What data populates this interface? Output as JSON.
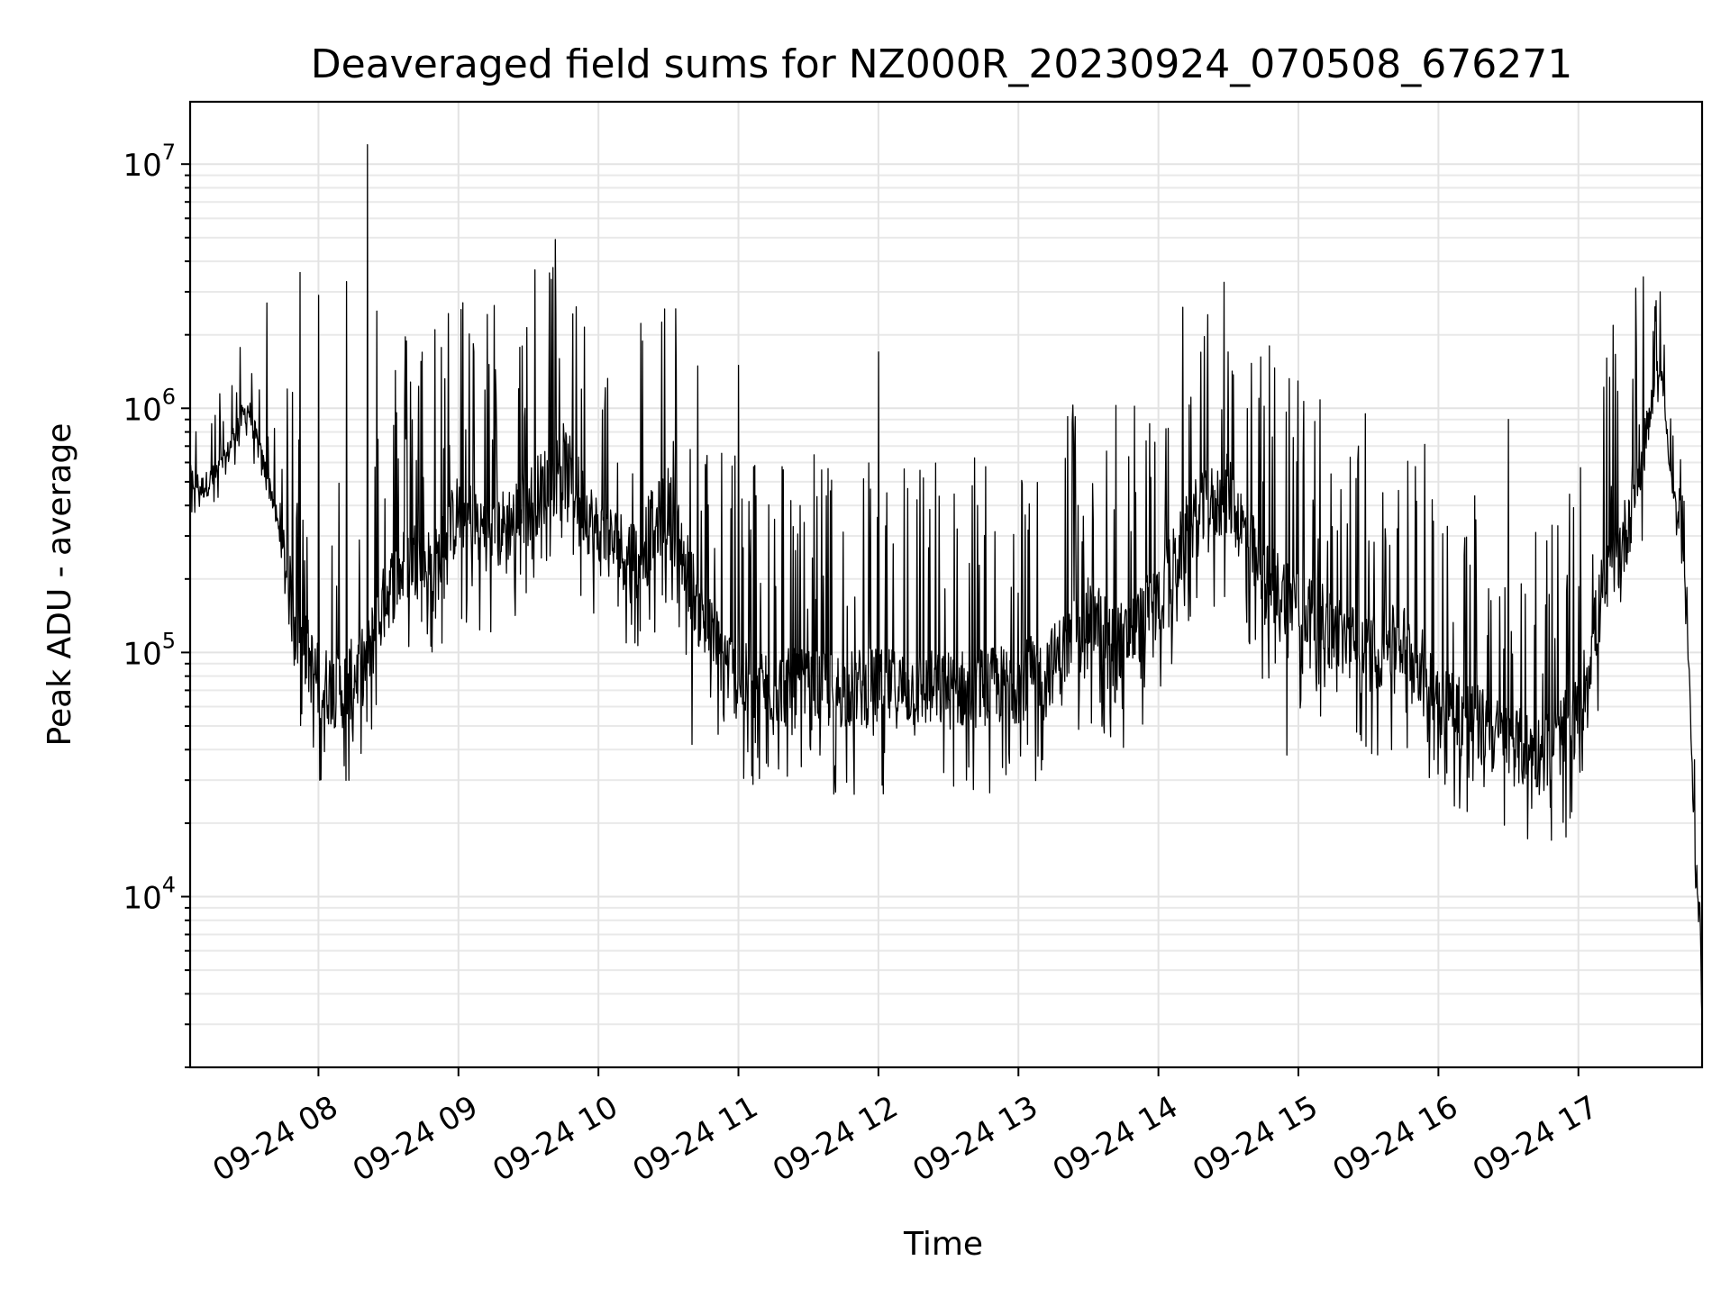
{
  "chart_data": {
    "type": "line",
    "title": "Deaveraged field sums for NZ000R_20230924_070508_676271",
    "xlabel": "Time",
    "ylabel": "Peak ADU - average",
    "yscale": "log",
    "xlim": [
      "2023-09-24 07:05",
      "2023-09-24 17:53"
    ],
    "ylim": [
      2000,
      18000000
    ],
    "grid": "on (major and minor)",
    "line_color": "#000000",
    "x_ticks": [
      {
        "label": "09-24 08",
        "value": "2023-09-24 08:00"
      },
      {
        "label": "09-24 09",
        "value": "2023-09-24 09:00"
      },
      {
        "label": "09-24 10",
        "value": "2023-09-24 10:00"
      },
      {
        "label": "09-24 11",
        "value": "2023-09-24 11:00"
      },
      {
        "label": "09-24 12",
        "value": "2023-09-24 12:00"
      },
      {
        "label": "09-24 13",
        "value": "2023-09-24 13:00"
      },
      {
        "label": "09-24 14",
        "value": "2023-09-24 14:00"
      },
      {
        "label": "09-24 15",
        "value": "2023-09-24 15:00"
      },
      {
        "label": "09-24 16",
        "value": "2023-09-24 16:00"
      },
      {
        "label": "09-24 17",
        "value": "2023-09-24 17:00"
      }
    ],
    "y_ticks": [
      {
        "base": "10",
        "exp": "4",
        "value": 10000
      },
      {
        "base": "10",
        "exp": "5",
        "value": 100000
      },
      {
        "base": "10",
        "exp": "6",
        "value": 1000000
      },
      {
        "base": "10",
        "exp": "7",
        "value": 10000000
      }
    ],
    "series": [
      {
        "baseline": {
          "x": [
            "07:05",
            "07:10",
            "07:15",
            "07:20",
            "07:25",
            "07:30",
            "07:35",
            "07:40",
            "07:45",
            "07:50",
            "08:00",
            "08:10",
            "08:20",
            "08:30",
            "08:40",
            "08:50",
            "09:00",
            "09:15",
            "09:30",
            "09:45",
            "10:00",
            "10:15",
            "10:30",
            "10:45",
            "11:00",
            "11:30",
            "12:00",
            "12:30",
            "13:00",
            "13:15",
            "13:30",
            "13:45",
            "14:00",
            "14:15",
            "14:30",
            "14:45",
            "15:00",
            "15:15",
            "15:30",
            "15:45",
            "16:00",
            "16:15",
            "16:30",
            "16:45",
            "17:00",
            "17:10",
            "17:20",
            "17:30",
            "17:35",
            "17:40",
            "17:45",
            "17:48",
            "17:50",
            "17:52",
            "17:53"
          ],
          "y": [
            520000,
            470000,
            520000,
            600000,
            850000,
            1000000,
            650000,
            450000,
            250000,
            130000,
            75000,
            70000,
            90000,
            180000,
            250000,
            220000,
            380000,
            300000,
            400000,
            600000,
            300000,
            250000,
            400000,
            130000,
            75000,
            70000,
            72000,
            70000,
            75000,
            90000,
            140000,
            110000,
            160000,
            350000,
            450000,
            200000,
            160000,
            120000,
            100000,
            110000,
            70000,
            52000,
            42000,
            38000,
            55000,
            170000,
            300000,
            900000,
            1600000,
            500000,
            250000,
            60000,
            15000,
            9000,
            3000
          ]
        },
        "spikes": [
          {
            "x": "07:52",
            "y": 3600000
          },
          {
            "x": "08:00",
            "y": 2900000
          },
          {
            "x": "08:12",
            "y": 3300000
          },
          {
            "x": "08:21",
            "y": 12000000
          },
          {
            "x": "08:25",
            "y": 2500000
          },
          {
            "x": "08:50",
            "y": 2100000
          },
          {
            "x": "07:38",
            "y": 2700000
          },
          {
            "x": "17:35",
            "y": 3000000
          },
          {
            "x": "11:00",
            "y": 1500000
          },
          {
            "x": "12:00",
            "y": 1700000
          },
          {
            "x": "14:30",
            "y": 1700000
          },
          {
            "x": "16:30",
            "y": 900000
          }
        ],
        "dips": [
          {
            "x": "10:40",
            "y": 42000
          },
          {
            "x": "15:40",
            "y": 40000
          },
          {
            "x": "16:40",
            "y": 23000
          },
          {
            "x": "14:55",
            "y": 38000
          },
          {
            "x": "11:35",
            "y": 38000
          }
        ]
      }
    ]
  }
}
